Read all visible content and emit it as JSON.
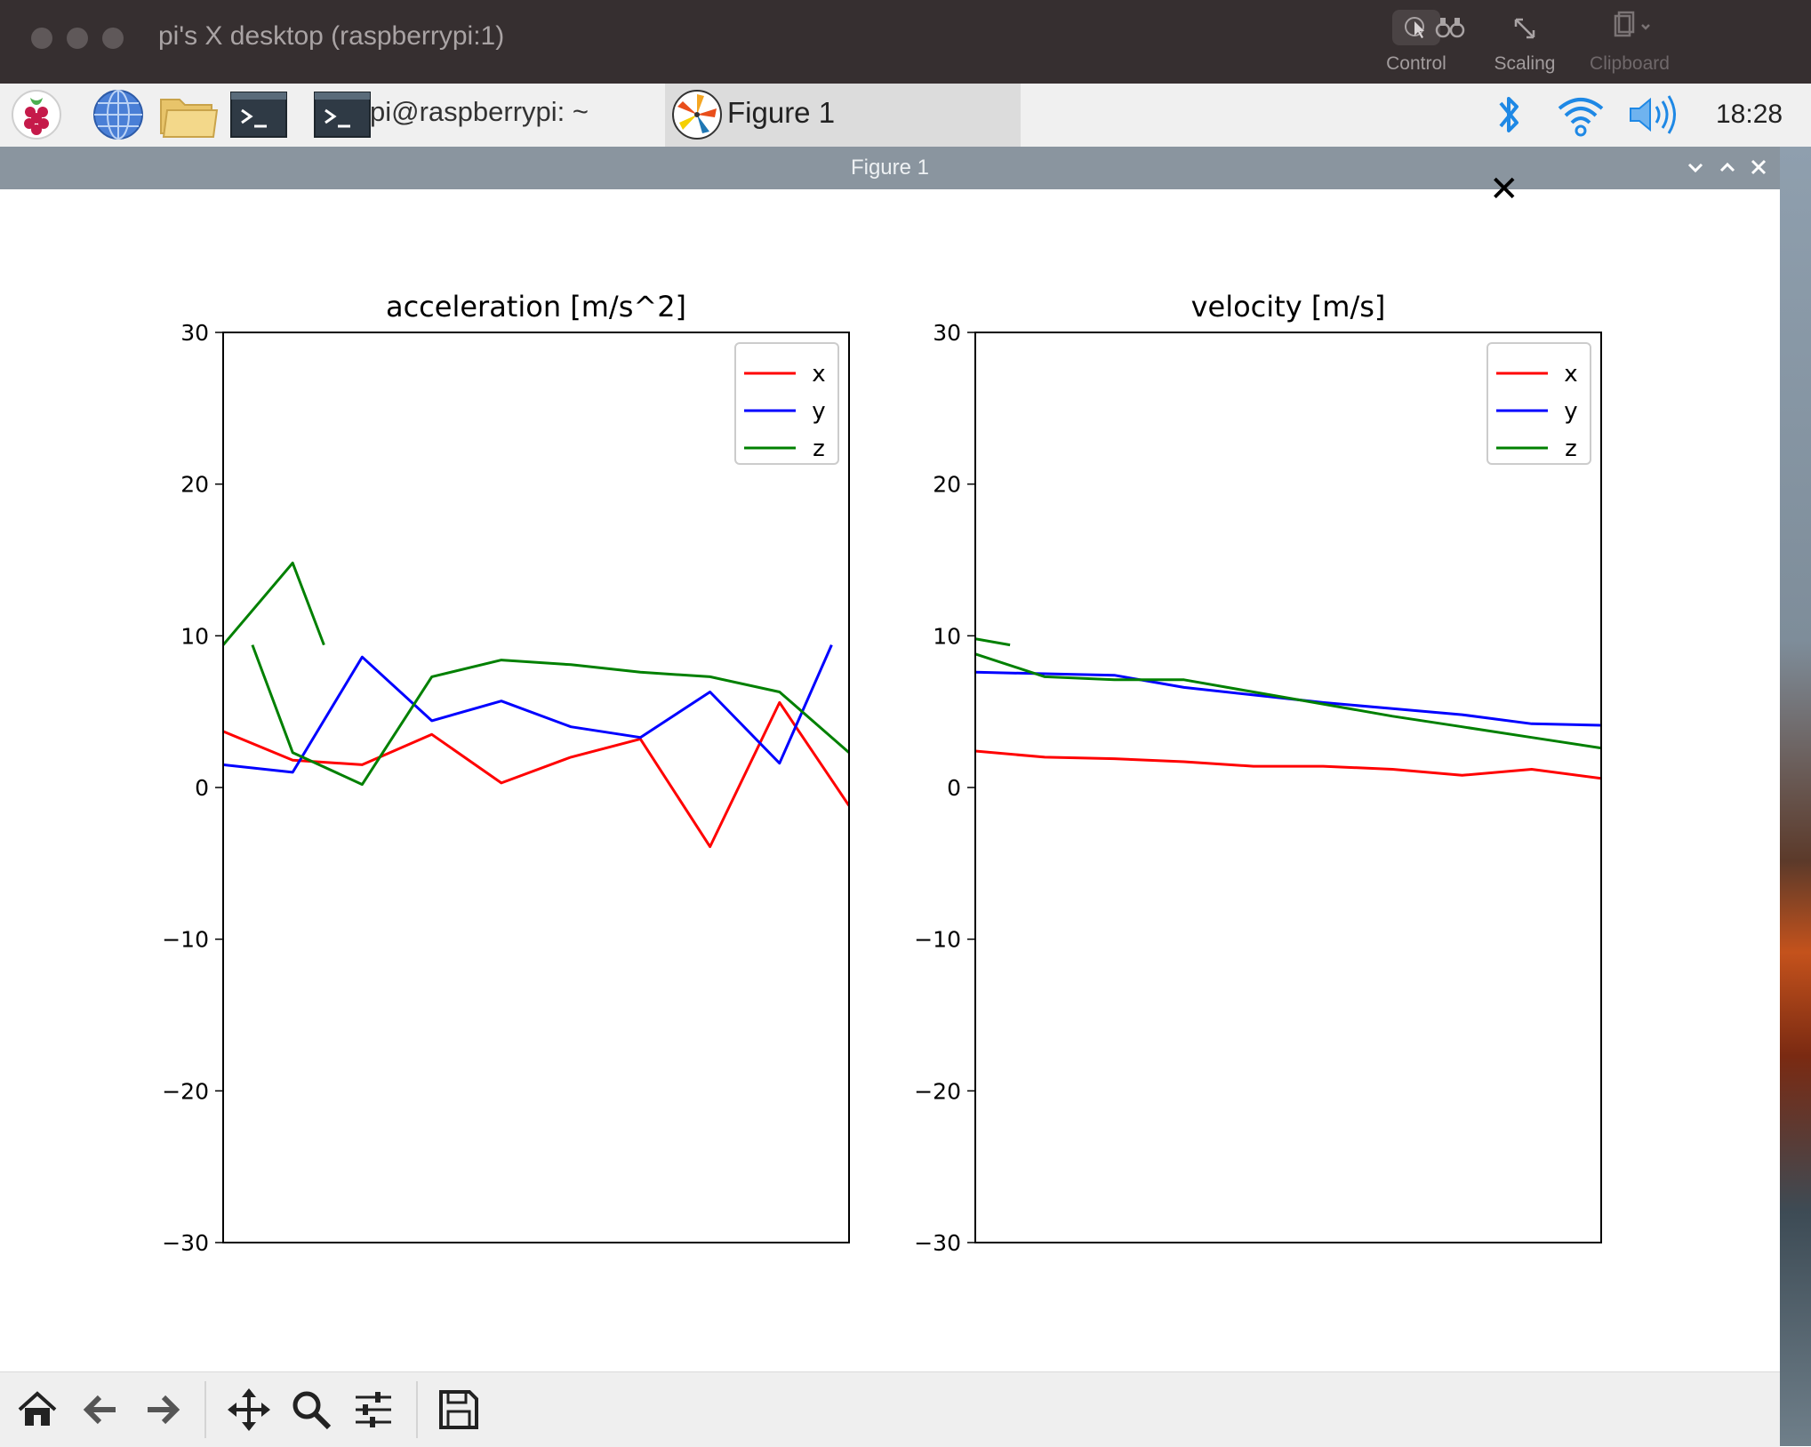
{
  "vnc_window": {
    "title": "pi's X desktop (raspberrypi:1)",
    "tools": [
      {
        "label": "Control",
        "icon": "control-icon"
      },
      {
        "label": "",
        "icon": "binoculars-icon"
      },
      {
        "label": "Scaling",
        "icon": "scaling-icon"
      },
      {
        "label": "Clipboard",
        "icon": "clipboard-icon"
      }
    ]
  },
  "taskbar": {
    "terminal_task_label": "pi@raspberrypi: ~",
    "figure_task_label": "Figure 1",
    "clock": "18:28"
  },
  "figure_window": {
    "title": "Figure 1"
  },
  "colors": {
    "x": "#ff0000",
    "y": "#0000ff",
    "z": "#008000"
  },
  "chart_data": [
    {
      "type": "line",
      "title": "acceleration [m/s^2]",
      "xlabel": "",
      "ylabel": "",
      "ylim": [
        -30,
        30
      ],
      "yticks": [
        "30",
        "20",
        "10",
        "0",
        "−10",
        "−20",
        "−30"
      ],
      "ytick_values": [
        30,
        20,
        10,
        0,
        -10,
        -20,
        -30
      ],
      "xlim": [
        0,
        9
      ],
      "legend": [
        "x",
        "y",
        "z"
      ],
      "legend_position": "top-right",
      "grid": false,
      "series": [
        {
          "name": "x",
          "x": [
            0,
            1,
            2,
            3,
            4,
            5,
            6,
            7,
            8,
            9
          ],
          "values": [
            3.7,
            1.8,
            1.5,
            3.5,
            0.3,
            2.0,
            3.2,
            -3.9,
            5.6,
            -1.2
          ]
        },
        {
          "name": "y",
          "x": [
            0,
            1,
            2,
            3,
            4,
            5,
            6,
            7,
            8,
            8.75
          ],
          "values": [
            1.5,
            1.0,
            8.6,
            4.4,
            5.7,
            4.0,
            3.3,
            6.3,
            1.6,
            9.4
          ]
        },
        {
          "name": "z",
          "x": [
            0,
            1,
            1.45
          ],
          "values": [
            9.4,
            14.8,
            9.4
          ]
        },
        {
          "name": "z",
          "x": [
            0.42,
            1,
            2,
            3,
            4,
            5,
            6,
            7,
            8,
            9
          ],
          "values": [
            9.4,
            2.3,
            0.2,
            7.3,
            8.4,
            8.1,
            7.6,
            7.3,
            6.3,
            2.3
          ]
        }
      ]
    },
    {
      "type": "line",
      "title": "velocity [m/s]",
      "xlabel": "",
      "ylabel": "",
      "ylim": [
        -30,
        30
      ],
      "yticks": [
        "30",
        "20",
        "10",
        "0",
        "−10",
        "−20",
        "−30"
      ],
      "ytick_values": [
        30,
        20,
        10,
        0,
        -10,
        -20,
        -30
      ],
      "xlim": [
        0,
        9
      ],
      "legend": [
        "x",
        "y",
        "z"
      ],
      "legend_position": "top-right",
      "grid": false,
      "series": [
        {
          "name": "x",
          "x": [
            0,
            1,
            2,
            3,
            4,
            5,
            6,
            7,
            8,
            9
          ],
          "values": [
            2.4,
            2.0,
            1.9,
            1.7,
            1.4,
            1.4,
            1.2,
            0.8,
            1.2,
            0.6
          ]
        },
        {
          "name": "y",
          "x": [
            0,
            1,
            2,
            3,
            4,
            5,
            6,
            7,
            8,
            9
          ],
          "values": [
            7.6,
            7.5,
            7.4,
            6.6,
            6.1,
            5.6,
            5.2,
            4.8,
            4.2,
            4.1
          ]
        },
        {
          "name": "z",
          "x": [
            0,
            0.5
          ],
          "values": [
            9.8,
            9.4
          ]
        },
        {
          "name": "z",
          "x": [
            0,
            1,
            2,
            3,
            4,
            5,
            6,
            7,
            8,
            9
          ],
          "values": [
            8.8,
            7.3,
            7.1,
            7.1,
            6.3,
            5.5,
            4.7,
            4.0,
            3.3,
            2.6
          ]
        }
      ]
    }
  ]
}
